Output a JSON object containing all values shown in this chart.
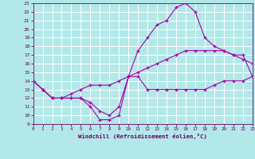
{
  "xlabel": "Windchill (Refroidissement éolien,°C)",
  "bg_color": "#b3e8e8",
  "grid_color": "#ffffff",
  "line_color": "#aa00aa",
  "xlim": [
    0,
    23
  ],
  "ylim": [
    9,
    23
  ],
  "xticks": [
    0,
    1,
    2,
    3,
    4,
    5,
    6,
    7,
    8,
    9,
    10,
    11,
    12,
    13,
    14,
    15,
    16,
    17,
    18,
    19,
    20,
    21,
    22,
    23
  ],
  "yticks": [
    9,
    10,
    11,
    12,
    13,
    14,
    15,
    16,
    17,
    18,
    19,
    20,
    21,
    22,
    23
  ],
  "curve1_x": [
    0,
    1,
    2,
    3,
    4,
    5,
    6,
    7,
    8,
    9,
    10,
    11,
    12,
    13,
    14,
    15,
    16,
    17,
    18,
    19,
    20,
    21,
    22,
    23
  ],
  "curve1_y": [
    14,
    13,
    12,
    12,
    12,
    12,
    11,
    9.5,
    9.5,
    10,
    14.5,
    14.5,
    13,
    13,
    13,
    13,
    13,
    13,
    13,
    13.5,
    14,
    14,
    14,
    14.5
  ],
  "curve2_x": [
    0,
    1,
    2,
    3,
    4,
    5,
    6,
    7,
    8,
    9,
    10,
    11,
    12,
    13,
    14,
    15,
    16,
    17,
    18,
    19,
    20,
    21,
    22,
    23
  ],
  "curve2_y": [
    14,
    13,
    12,
    12,
    12,
    12,
    11.5,
    10.5,
    10,
    11,
    14.5,
    17.5,
    19,
    20.5,
    21,
    22.5,
    23,
    22,
    19,
    18,
    17.5,
    17,
    17,
    14.5
  ],
  "curve3_x": [
    0,
    1,
    2,
    3,
    4,
    5,
    6,
    7,
    8,
    9,
    10,
    11,
    12,
    13,
    14,
    15,
    16,
    17,
    18,
    19,
    20,
    21,
    22,
    23
  ],
  "curve3_y": [
    14,
    13,
    12,
    12,
    12.5,
    13,
    13.5,
    13.5,
    13.5,
    14,
    14.5,
    15,
    15.5,
    16,
    16.5,
    17,
    17.5,
    17.5,
    17.5,
    17.5,
    17.5,
    17,
    16.5,
    16
  ]
}
